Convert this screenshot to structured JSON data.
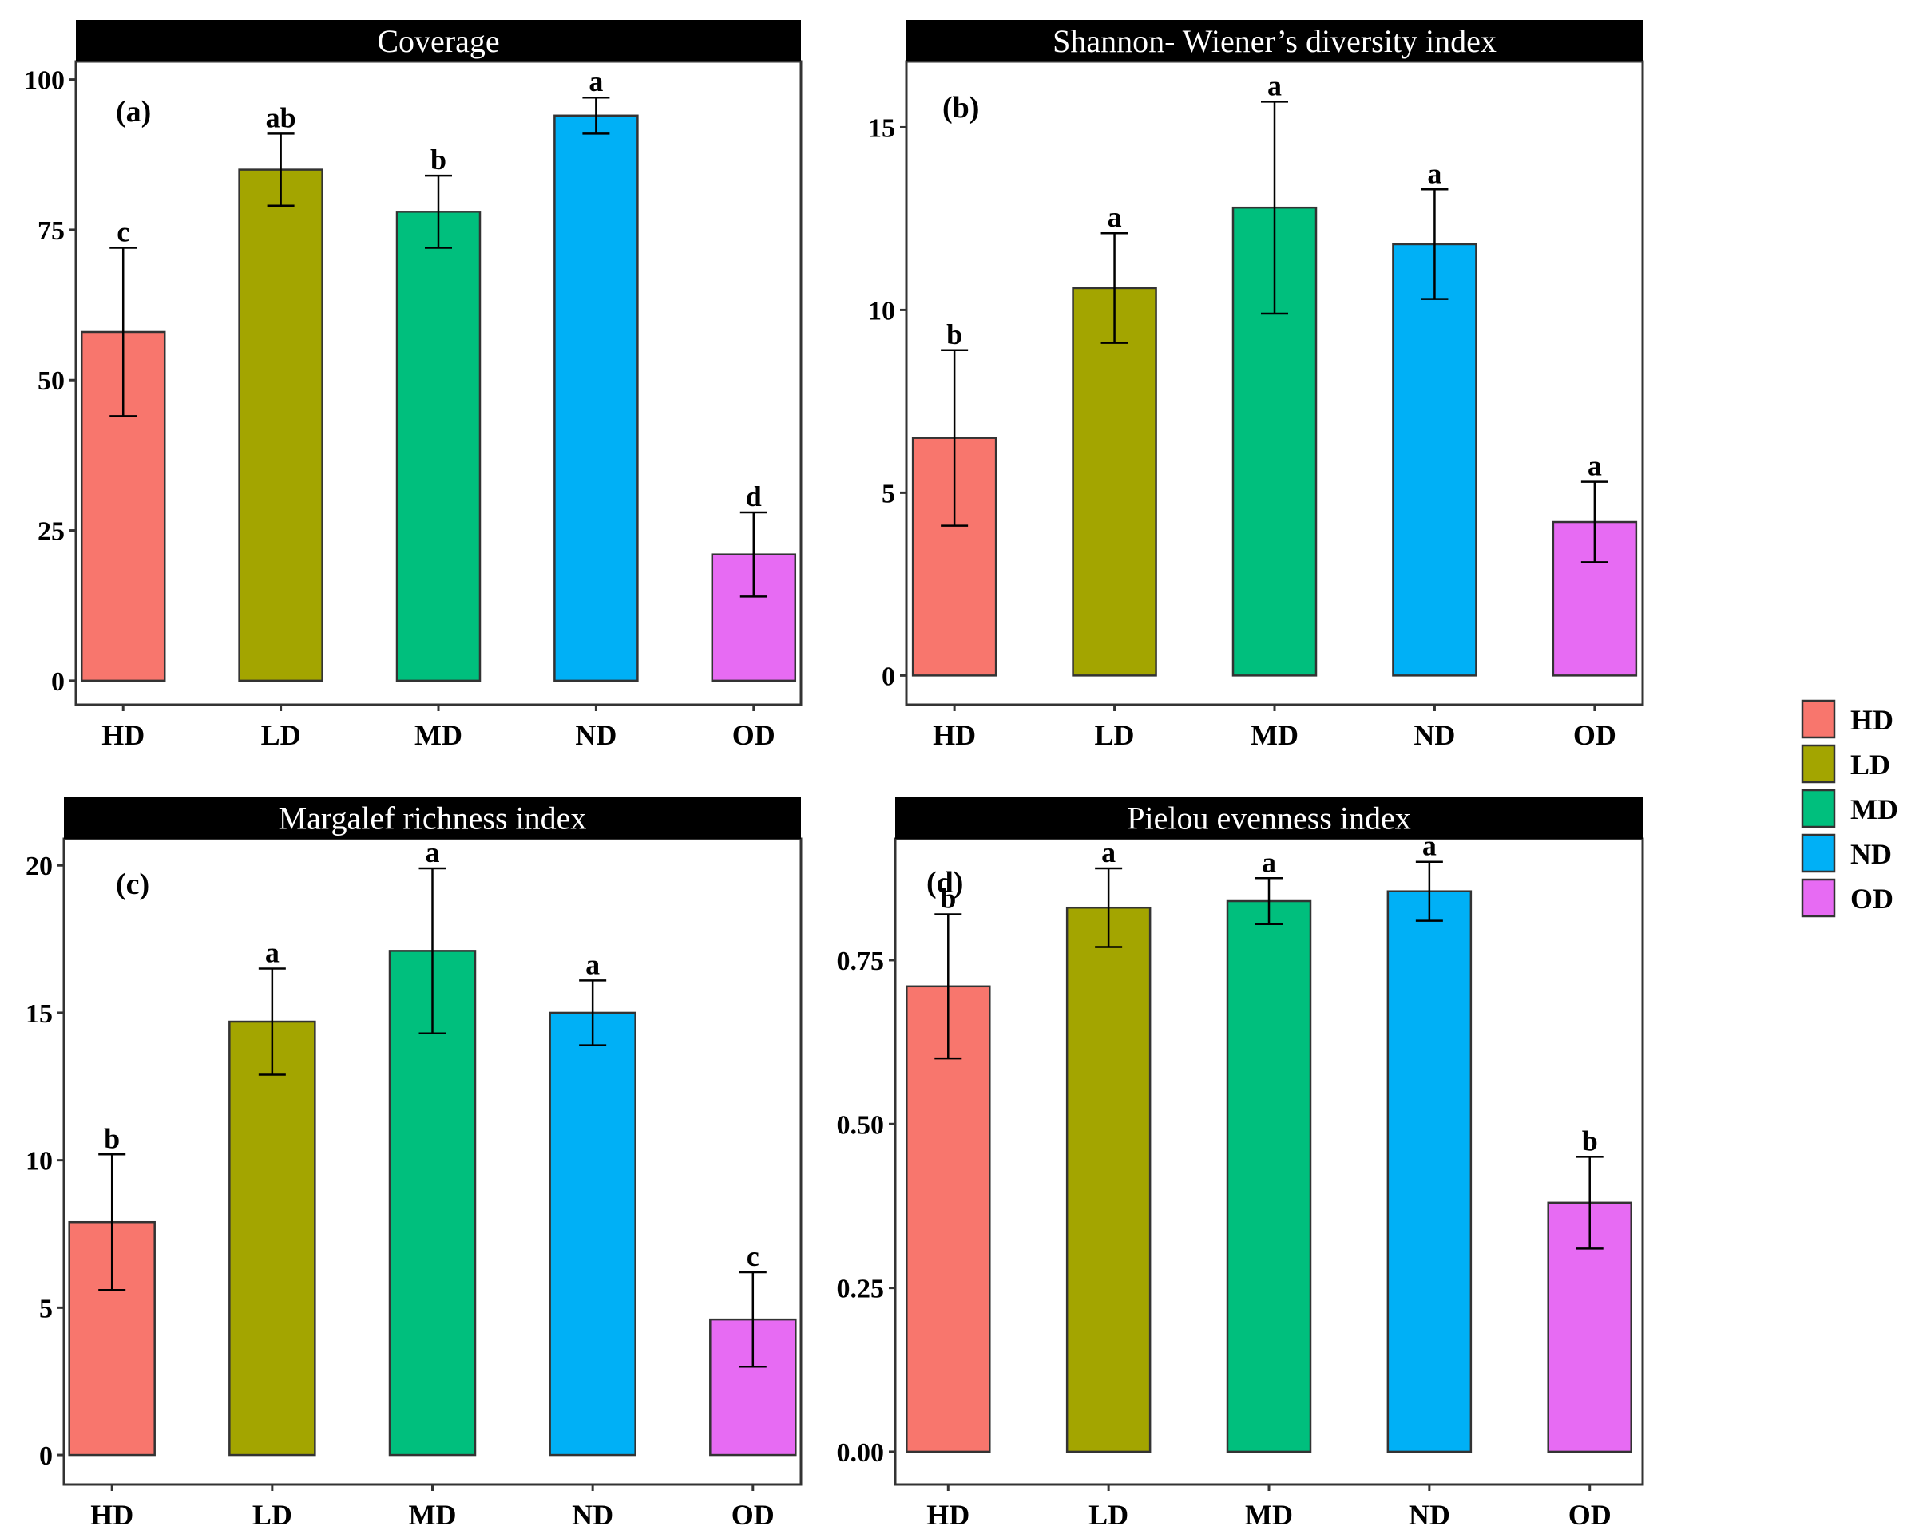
{
  "legend": [
    {
      "key": "HD",
      "label": "HD",
      "color": "#F8766D"
    },
    {
      "key": "LD",
      "label": "LD",
      "color": "#A3A500"
    },
    {
      "key": "MD",
      "label": "MD",
      "color": "#00BF7D"
    },
    {
      "key": "ND",
      "label": "ND",
      "color": "#00B0F6"
    },
    {
      "key": "OD",
      "label": "OD",
      "color": "#E76BF3"
    }
  ],
  "chart_data": [
    {
      "type": "bar",
      "title": "Coverage",
      "panel_tag": "(a)",
      "categories": [
        "HD",
        "LD",
        "MD",
        "ND",
        "OD"
      ],
      "values": [
        58,
        85,
        78,
        94,
        21
      ],
      "errors": [
        14,
        6,
        6,
        3,
        7
      ],
      "significance": [
        "c",
        "ab",
        "b",
        "a",
        "d"
      ],
      "ylim": [
        -4,
        103
      ],
      "yticks": [
        0,
        25,
        50,
        75,
        100
      ],
      "ytick_labels": [
        "0",
        "25",
        "50",
        "75",
        "100"
      ],
      "xlabel": "",
      "ylabel": ""
    },
    {
      "type": "bar",
      "title": "Shannon- Wiener’s diversity index",
      "panel_tag": "(b)",
      "categories": [
        "HD",
        "LD",
        "MD",
        "ND",
        "OD"
      ],
      "values": [
        6.5,
        10.6,
        12.8,
        11.8,
        4.2
      ],
      "errors": [
        2.4,
        1.5,
        2.9,
        1.5,
        1.1
      ],
      "significance": [
        "b",
        "a",
        "a",
        "a",
        "a"
      ],
      "ylim": [
        -0.8,
        16.8
      ],
      "yticks": [
        0,
        5,
        10,
        15
      ],
      "ytick_labels": [
        "0",
        "5",
        "10",
        "15"
      ],
      "xlabel": "",
      "ylabel": ""
    },
    {
      "type": "bar",
      "title": "Margalef richness index",
      "panel_tag": "(c)",
      "categories": [
        "HD",
        "LD",
        "MD",
        "ND",
        "OD"
      ],
      "values": [
        7.9,
        14.7,
        17.1,
        15.0,
        4.6
      ],
      "errors": [
        2.3,
        1.8,
        2.8,
        1.1,
        1.6
      ],
      "significance": [
        "b",
        "a",
        "a",
        "a",
        "c"
      ],
      "ylim": [
        -1,
        20.9
      ],
      "yticks": [
        0,
        5,
        10,
        15,
        20
      ],
      "ytick_labels": [
        "0",
        "5",
        "10",
        "15",
        "20"
      ],
      "xlabel": "",
      "ylabel": ""
    },
    {
      "type": "bar",
      "title": "Pielou evenness index",
      "panel_tag": "(d)",
      "categories": [
        "HD",
        "LD",
        "MD",
        "ND",
        "OD"
      ],
      "values": [
        0.71,
        0.83,
        0.84,
        0.855,
        0.38
      ],
      "errors": [
        0.11,
        0.06,
        0.035,
        0.045,
        0.07
      ],
      "significance": [
        "b",
        "a",
        "a",
        "a",
        "b"
      ],
      "ylim": [
        -0.05,
        0.935
      ],
      "yticks": [
        0.0,
        0.25,
        0.5,
        0.75
      ],
      "ytick_labels": [
        "0.00",
        "0.25",
        "0.50",
        "0.75"
      ],
      "xlabel": "",
      "ylabel": ""
    }
  ]
}
